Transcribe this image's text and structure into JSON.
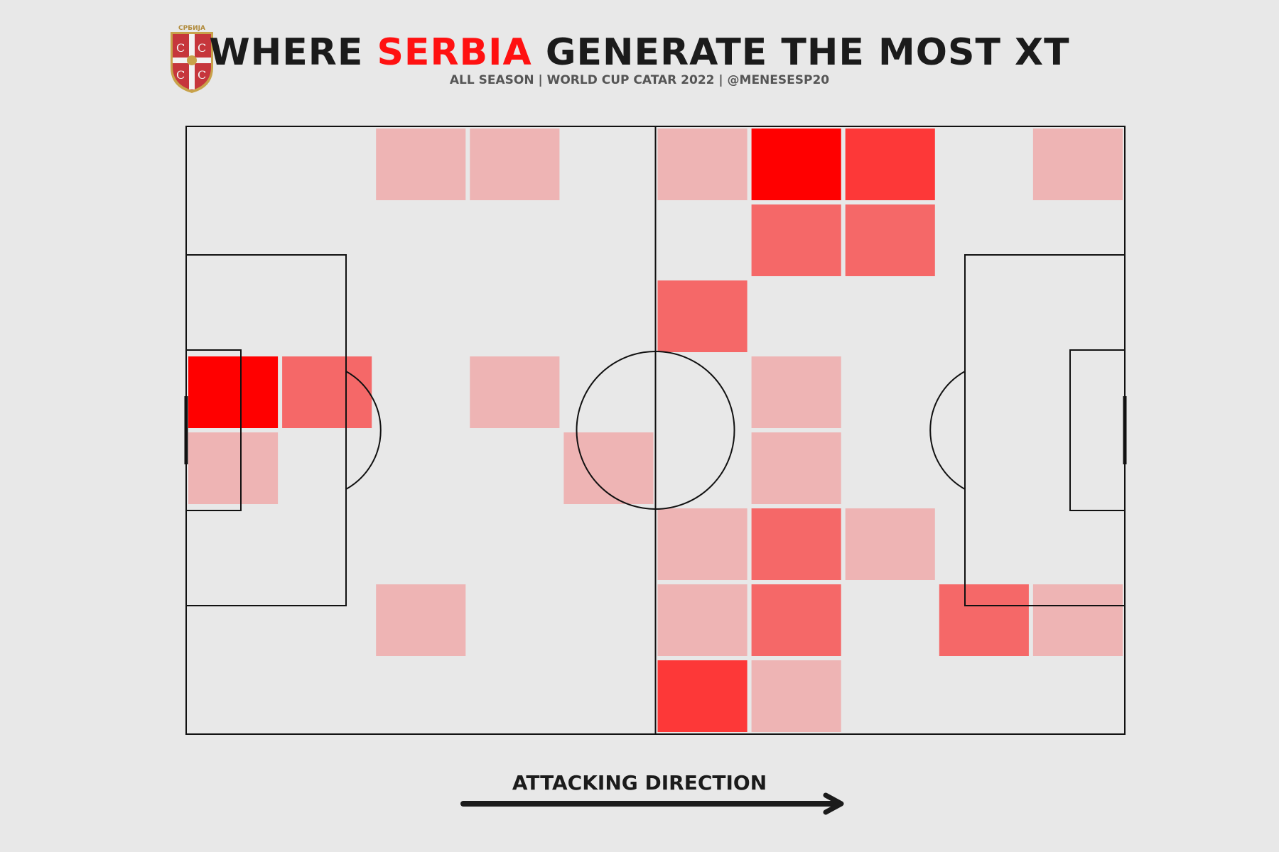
{
  "header": {
    "title_prefix": "WHERE ",
    "title_team": "SERBIA",
    "title_suffix": " GENERATE THE MOST XT",
    "subtitle": "ALL SEASON | WORLD CUP CATAR 2022 | @MENESESP20"
  },
  "crest": {
    "text": "СРБИЈА",
    "icon": "serbia-crest-icon"
  },
  "footer": {
    "direction_label": "ATTACKING DIRECTION"
  },
  "colors": {
    "background": "#e8e8e8",
    "highlight": "#ff1111",
    "line": "#111111",
    "level_1": "#eeb4b4",
    "level_2": "#f56868",
    "level_3": "#fd3838",
    "level_4": "#ff0000"
  },
  "chart_data": {
    "type": "heatmap",
    "title": "WHERE SERBIA GENERATE THE MOST XT",
    "grid": {
      "columns": 10,
      "rows": 8
    },
    "attacking_direction": "left-to-right",
    "scale": "intensity level 1 (low) to 4 (high)",
    "cells": [
      {
        "col": 2,
        "row": 0,
        "level": 1
      },
      {
        "col": 3,
        "row": 0,
        "level": 1
      },
      {
        "col": 5,
        "row": 0,
        "level": 1
      },
      {
        "col": 6,
        "row": 0,
        "level": 4
      },
      {
        "col": 7,
        "row": 0,
        "level": 3
      },
      {
        "col": 9,
        "row": 0,
        "level": 1
      },
      {
        "col": 6,
        "row": 1,
        "level": 2
      },
      {
        "col": 7,
        "row": 1,
        "level": 2
      },
      {
        "col": 5,
        "row": 2,
        "level": 2
      },
      {
        "col": 0,
        "row": 3,
        "level": 4
      },
      {
        "col": 1,
        "row": 3,
        "level": 2
      },
      {
        "col": 3,
        "row": 3,
        "level": 1
      },
      {
        "col": 6,
        "row": 3,
        "level": 1
      },
      {
        "col": 0,
        "row": 4,
        "level": 1
      },
      {
        "col": 4,
        "row": 4,
        "level": 1
      },
      {
        "col": 6,
        "row": 4,
        "level": 1
      },
      {
        "col": 5,
        "row": 5,
        "level": 1
      },
      {
        "col": 6,
        "row": 5,
        "level": 2
      },
      {
        "col": 7,
        "row": 5,
        "level": 1
      },
      {
        "col": 2,
        "row": 6,
        "level": 1
      },
      {
        "col": 5,
        "row": 6,
        "level": 1
      },
      {
        "col": 6,
        "row": 6,
        "level": 2
      },
      {
        "col": 8,
        "row": 6,
        "level": 2
      },
      {
        "col": 9,
        "row": 6,
        "level": 1
      },
      {
        "col": 5,
        "row": 7,
        "level": 3
      },
      {
        "col": 6,
        "row": 7,
        "level": 1
      }
    ]
  }
}
